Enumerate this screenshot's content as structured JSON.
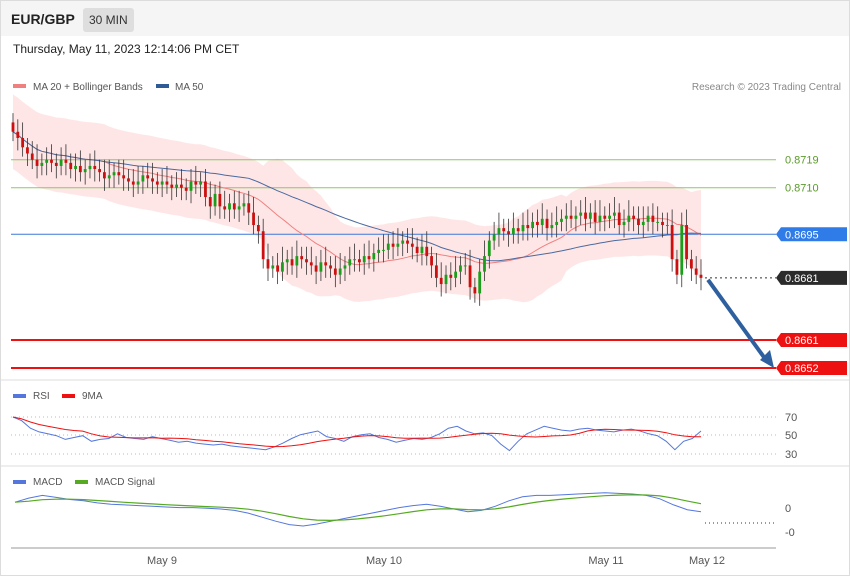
{
  "header": {
    "symbol": "EUR/GBP",
    "timeframe": "30 MIN"
  },
  "datetime": "Thursday, May 11, 2023 12:14:06 PM CET",
  "legend": {
    "ma20": "MA 20 + Bollinger Bands",
    "ma50": "MA 50"
  },
  "credit": "Research © 2023 Trading Central",
  "colors": {
    "bullish": "#1b9e1b",
    "bearish": "#cc1010",
    "ma20": "#f08080",
    "band": "#ffe2e2",
    "ma50": "#4a6aa0",
    "support": "#ee1111",
    "resistance": "#8cc864",
    "pivot": "#3c78d8",
    "arrow": "#2e5f9e",
    "rsi": "#5577dd",
    "rsi_ma": "#ee1111",
    "macd": "#5577dd",
    "macd_signal": "#55aa22"
  },
  "levels": [
    {
      "label": "0.8719",
      "value": 0.8719,
      "kind": "resistance"
    },
    {
      "label": "0.8710",
      "value": 0.871,
      "kind": "resistance"
    },
    {
      "label": "0.8695",
      "value": 0.8695,
      "kind": "pivot"
    },
    {
      "label": "0.8681",
      "value": 0.8681,
      "kind": "last"
    },
    {
      "label": "0.8661",
      "value": 0.8661,
      "kind": "support"
    },
    {
      "label": "0.8652",
      "value": 0.8652,
      "kind": "support"
    }
  ],
  "rsi": {
    "legend": "RSI",
    "ma_legend": "9MA",
    "ticks": [
      "70",
      "50",
      "30"
    ]
  },
  "macd": {
    "legend": "MACD",
    "signal_legend": "MACD Signal",
    "ticks": [
      "0",
      "-0"
    ]
  },
  "x_axis": {
    "labels": [
      "May 9",
      "May 10",
      "May 11",
      "May 12"
    ]
  },
  "chart_data": {
    "type": "candlestick",
    "ylim": [
      0.8652,
      0.8735
    ],
    "levels": [
      0.8719,
      0.871,
      0.8695,
      0.8681,
      0.8661,
      0.8652
    ],
    "closes": [
      0.8728,
      0.8726,
      0.8723,
      0.8721,
      0.8719,
      0.8717,
      0.8718,
      0.8719,
      0.8718,
      0.8717,
      0.8719,
      0.8718,
      0.8716,
      0.8717,
      0.8715,
      0.8716,
      0.8717,
      0.8716,
      0.8715,
      0.8713,
      0.8714,
      0.8715,
      0.8714,
      0.8713,
      0.8712,
      0.8711,
      0.8712,
      0.8714,
      0.8713,
      0.8712,
      0.8711,
      0.8712,
      0.8711,
      0.871,
      0.8711,
      0.871,
      0.8709,
      0.8712,
      0.8711,
      0.8712,
      0.8707,
      0.8704,
      0.8708,
      0.8704,
      0.8703,
      0.8705,
      0.8703,
      0.8704,
      0.8705,
      0.8702,
      0.8698,
      0.8696,
      0.8687,
      0.8684,
      0.8685,
      0.8683,
      0.8686,
      0.8687,
      0.8685,
      0.8688,
      0.8687,
      0.8686,
      0.8685,
      0.8683,
      0.8686,
      0.8685,
      0.8684,
      0.8682,
      0.8684,
      0.8685,
      0.8687,
      0.8687,
      0.8686,
      0.8688,
      0.8687,
      0.8689,
      0.869,
      0.869,
      0.8692,
      0.8691,
      0.8692,
      0.8693,
      0.8692,
      0.8691,
      0.8689,
      0.8691,
      0.8688,
      0.8685,
      0.8681,
      0.8679,
      0.8682,
      0.8681,
      0.8683,
      0.8685,
      0.8685,
      0.8678,
      0.8676,
      0.8683,
      0.8688,
      0.8693,
      0.8695,
      0.8697,
      0.8696,
      0.8695,
      0.8697,
      0.8696,
      0.8698,
      0.8697,
      0.8699,
      0.8698,
      0.87,
      0.8697,
      0.8698,
      0.8699,
      0.87,
      0.8701,
      0.87,
      0.8701,
      0.8702,
      0.87,
      0.8702,
      0.8699,
      0.8701,
      0.87,
      0.8701,
      0.8702,
      0.8698,
      0.8699,
      0.8701,
      0.87,
      0.8698,
      0.8699,
      0.8701,
      0.8699,
      0.8699,
      0.8698,
      0.8698,
      0.8687,
      0.8682,
      0.8698,
      0.8687,
      0.8684,
      0.8682,
      0.8681
    ],
    "bollinger": {
      "upper_end": 0.8706,
      "lower_end": 0.8683
    },
    "rsi_values": [
      70,
      66,
      58,
      54,
      52,
      50,
      46,
      48,
      50,
      44,
      46,
      47,
      52,
      48,
      47,
      46,
      49,
      47,
      45,
      43,
      44,
      42,
      41,
      40,
      41,
      39,
      38,
      37,
      36,
      35,
      38,
      42,
      47,
      51,
      53,
      55,
      49,
      47,
      44,
      49,
      51,
      52,
      48,
      46,
      43,
      45,
      47,
      46,
      48,
      52,
      58,
      60,
      55,
      52,
      53,
      50,
      41,
      34,
      44,
      52,
      56,
      60,
      58,
      56,
      55,
      57,
      58,
      56,
      55,
      54,
      56,
      57,
      55,
      52,
      50,
      44,
      35,
      44,
      47,
      55
    ],
    "macd_values": [
      0.2,
      0.26,
      0.3,
      0.27,
      0.24,
      0.22,
      0.19,
      0.17,
      0.16,
      0.15,
      0.14,
      0.13,
      0.12,
      0.12,
      0.11,
      0.1,
      0.08,
      0.04,
      -0.02,
      -0.08,
      -0.13,
      -0.15,
      -0.12,
      -0.08,
      -0.04,
      0.0,
      0.04,
      0.08,
      0.12,
      0.15,
      0.17,
      0.14,
      0.1,
      0.06,
      0.08,
      0.14,
      0.22,
      0.28,
      0.3,
      0.3,
      0.31,
      0.32,
      0.33,
      0.34,
      0.33,
      0.32,
      0.3,
      0.25,
      0.16,
      0.09,
      0.06
    ]
  }
}
